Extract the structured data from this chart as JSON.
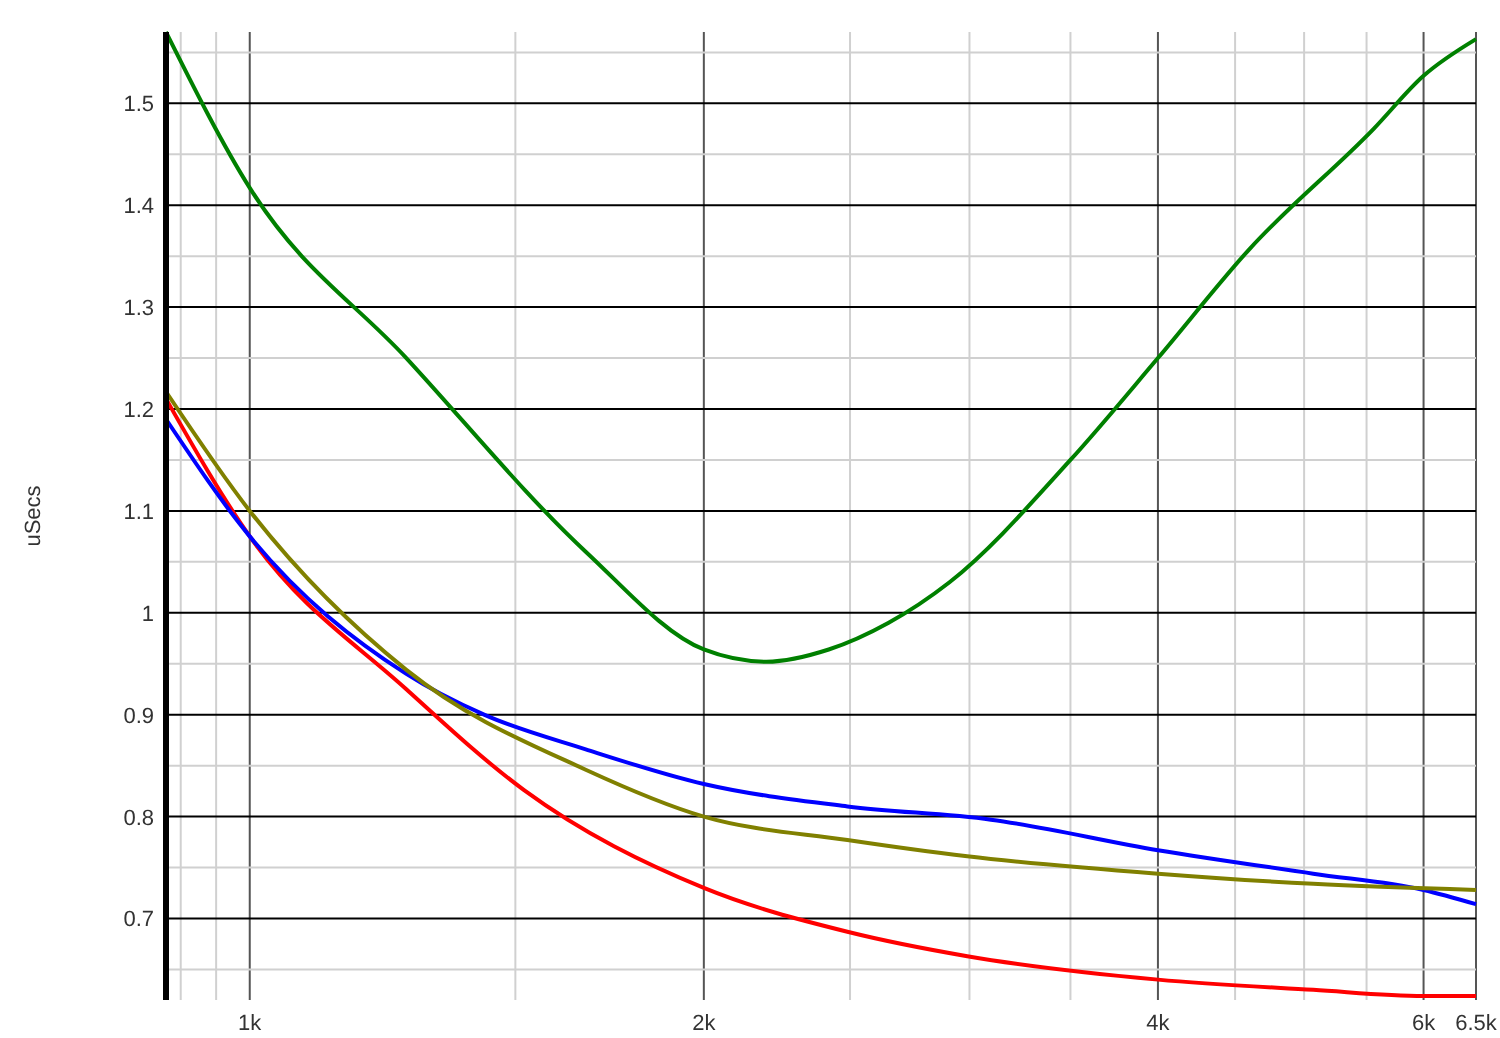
{
  "chart_data": {
    "type": "line",
    "ylabel": "uSecs",
    "log": "x",
    "grid": true,
    "xlim": [
      880,
      6500
    ],
    "ylim": [
      0.62,
      1.57
    ],
    "xticks": [
      {
        "value": 900,
        "label": null
      },
      {
        "value": 950,
        "label": null
      },
      {
        "value": 1000,
        "label": "1k"
      },
      {
        "value": 1500,
        "label": null
      },
      {
        "value": 2000,
        "label": "2k"
      },
      {
        "value": 2500,
        "label": null
      },
      {
        "value": 3000,
        "label": null
      },
      {
        "value": 3500,
        "label": null
      },
      {
        "value": 4000,
        "label": "4k"
      },
      {
        "value": 4500,
        "label": null
      },
      {
        "value": 5000,
        "label": null
      },
      {
        "value": 5500,
        "label": null
      },
      {
        "value": 6000,
        "label": "6k"
      },
      {
        "value": 6500,
        "label": "6.5k"
      }
    ],
    "yticks": [
      {
        "value": 0.65,
        "label": null
      },
      0.7,
      {
        "value": 0.75,
        "label": null
      },
      0.8,
      {
        "value": 0.85,
        "label": null
      },
      0.9,
      {
        "value": 0.95,
        "label": null
      },
      1,
      {
        "value": 1.05,
        "label": null
      },
      1.1,
      {
        "value": 1.15,
        "label": null
      },
      1.2,
      {
        "value": 1.25,
        "label": null
      },
      1.3,
      {
        "value": 1.35,
        "label": null
      },
      1.4,
      {
        "value": 1.45,
        "label": null
      },
      1.5,
      {
        "value": 1.55,
        "label": null
      }
    ],
    "series": [
      {
        "color": "#008000",
        "x": [
          880,
          1000,
          1270,
          1670,
          2000,
          2200,
          2420,
          2650,
          2910,
          3500,
          4000,
          4600,
          5560,
          6000,
          6500
        ],
        "values": [
          1.57,
          1.417,
          1.25,
          1.06,
          0.964,
          0.952,
          0.964,
          0.99,
          1.03,
          1.15,
          1.25,
          1.357,
          1.475,
          1.527,
          1.563
        ]
      },
      {
        "color": "#ff0000",
        "x": [
          880,
          1000,
          1270,
          1520,
          2000,
          2490,
          2990,
          4000,
          5070,
          6000,
          6500
        ],
        "values": [
          1.21,
          1.075,
          0.925,
          0.826,
          0.73,
          0.687,
          0.663,
          0.64,
          0.63,
          0.624,
          0.624
        ]
      },
      {
        "color": "#0000ff",
        "x": [
          880,
          1000,
          1270,
          1430,
          1670,
          2000,
          2490,
          3100,
          4000,
          5070,
          6000,
          6500
        ],
        "values": [
          1.19,
          1.075,
          0.94,
          0.9,
          0.866,
          0.832,
          0.81,
          0.797,
          0.767,
          0.744,
          0.728,
          0.714
        ]
      },
      {
        "color": "#808000",
        "x": [
          880,
          1000,
          1270,
          1670,
          2000,
          2490,
          2990,
          4000,
          5070,
          6500
        ],
        "values": [
          1.217,
          1.1,
          0.944,
          0.846,
          0.8,
          0.777,
          0.761,
          0.744,
          0.734,
          0.728
        ]
      }
    ]
  }
}
